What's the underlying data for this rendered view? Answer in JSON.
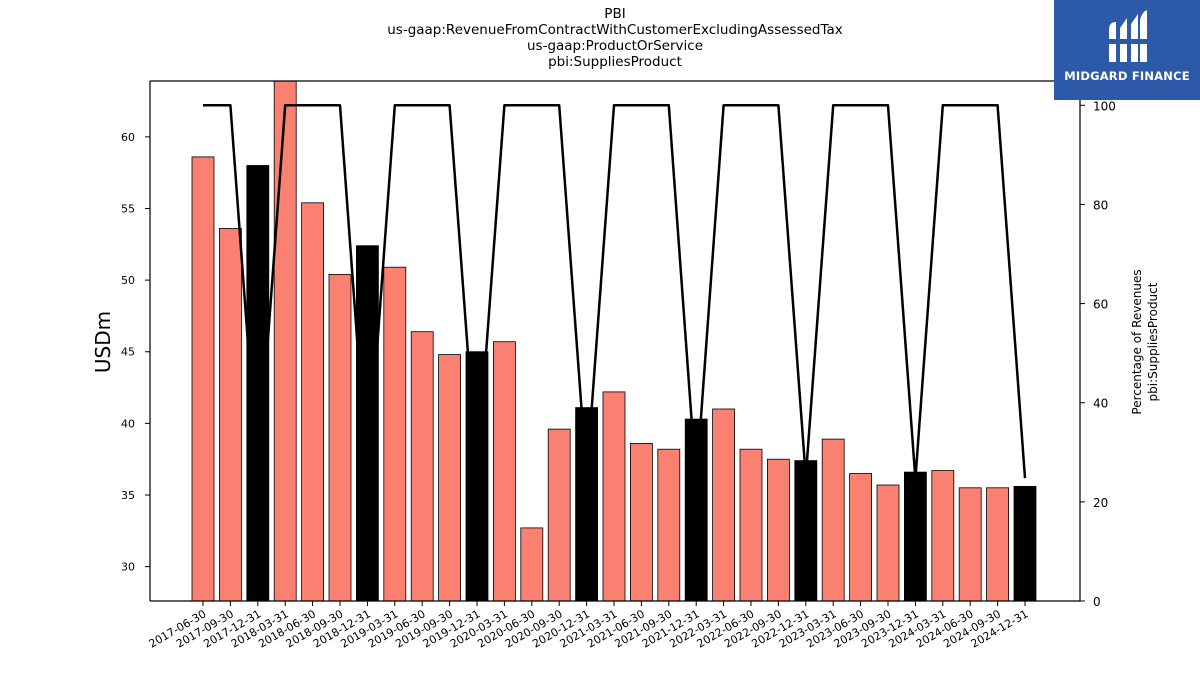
{
  "logo": {
    "text": "MIDGARD FINANCE",
    "icon": "midgard-logo-icon",
    "background": "#2c5aa8"
  },
  "chart_data": {
    "type": "bar",
    "title_lines": [
      "PBI",
      "us-gaap:RevenueFromContractWithCustomerExcludingAssessedTax",
      "us-gaap:ProductOrService",
      "pbi:SuppliesProduct"
    ],
    "ylabel": "USDm",
    "y2label_lines": [
      "Percentage of Revenues",
      "pbi:SuppliesProduct"
    ],
    "ylim": [
      27.6,
      63.9
    ],
    "y2lim": [
      0,
      104.9
    ],
    "yticks": [
      30,
      35,
      40,
      45,
      50,
      55,
      60
    ],
    "y2ticks": [
      0,
      20,
      40,
      60,
      80,
      100
    ],
    "categories": [
      "2017-06-30",
      "2017-09-30",
      "2017-12-31",
      "2018-03-31",
      "2018-06-30",
      "2018-09-30",
      "2018-12-31",
      "2019-03-31",
      "2019-06-30",
      "2019-09-30",
      "2019-12-31",
      "2020-03-31",
      "2020-06-30",
      "2020-09-30",
      "2020-12-31",
      "2021-03-31",
      "2021-06-30",
      "2021-09-30",
      "2021-12-31",
      "2022-03-31",
      "2022-06-30",
      "2022-09-30",
      "2022-12-31",
      "2023-03-31",
      "2023-06-30",
      "2023-09-30",
      "2023-12-31",
      "2024-03-31",
      "2024-06-30",
      "2024-09-30",
      "2024-12-31"
    ],
    "series": [
      {
        "type": "bar",
        "values": [
          58.6,
          53.6,
          58.0,
          64.5,
          55.4,
          50.4,
          52.4,
          50.9,
          46.4,
          44.8,
          45.0,
          45.7,
          32.7,
          39.6,
          41.1,
          42.2,
          38.6,
          38.2,
          40.3,
          41.0,
          38.2,
          37.5,
          37.4,
          38.9,
          36.5,
          35.7,
          36.6,
          36.7,
          35.5,
          35.5,
          35.6
        ],
        "annual_mask": [
          false,
          false,
          true,
          false,
          false,
          false,
          true,
          false,
          false,
          false,
          true,
          false,
          false,
          false,
          true,
          false,
          false,
          false,
          true,
          false,
          false,
          false,
          true,
          false,
          false,
          false,
          true,
          false,
          false,
          false,
          true
        ]
      },
      {
        "type": "line",
        "axis": "right",
        "values": [
          100,
          100,
          25.1,
          100,
          100,
          100,
          24.3,
          100,
          100,
          100,
          25.4,
          100,
          100,
          100,
          24.9,
          100,
          100,
          100,
          23.7,
          100,
          100,
          100,
          25.0,
          100,
          100,
          100,
          24.6,
          100,
          100,
          100,
          24.8
        ]
      }
    ],
    "colors": {
      "quarter_bar": "#fa8072",
      "annual_bar": "#000000",
      "line": "#000000"
    },
    "grid": false
  }
}
